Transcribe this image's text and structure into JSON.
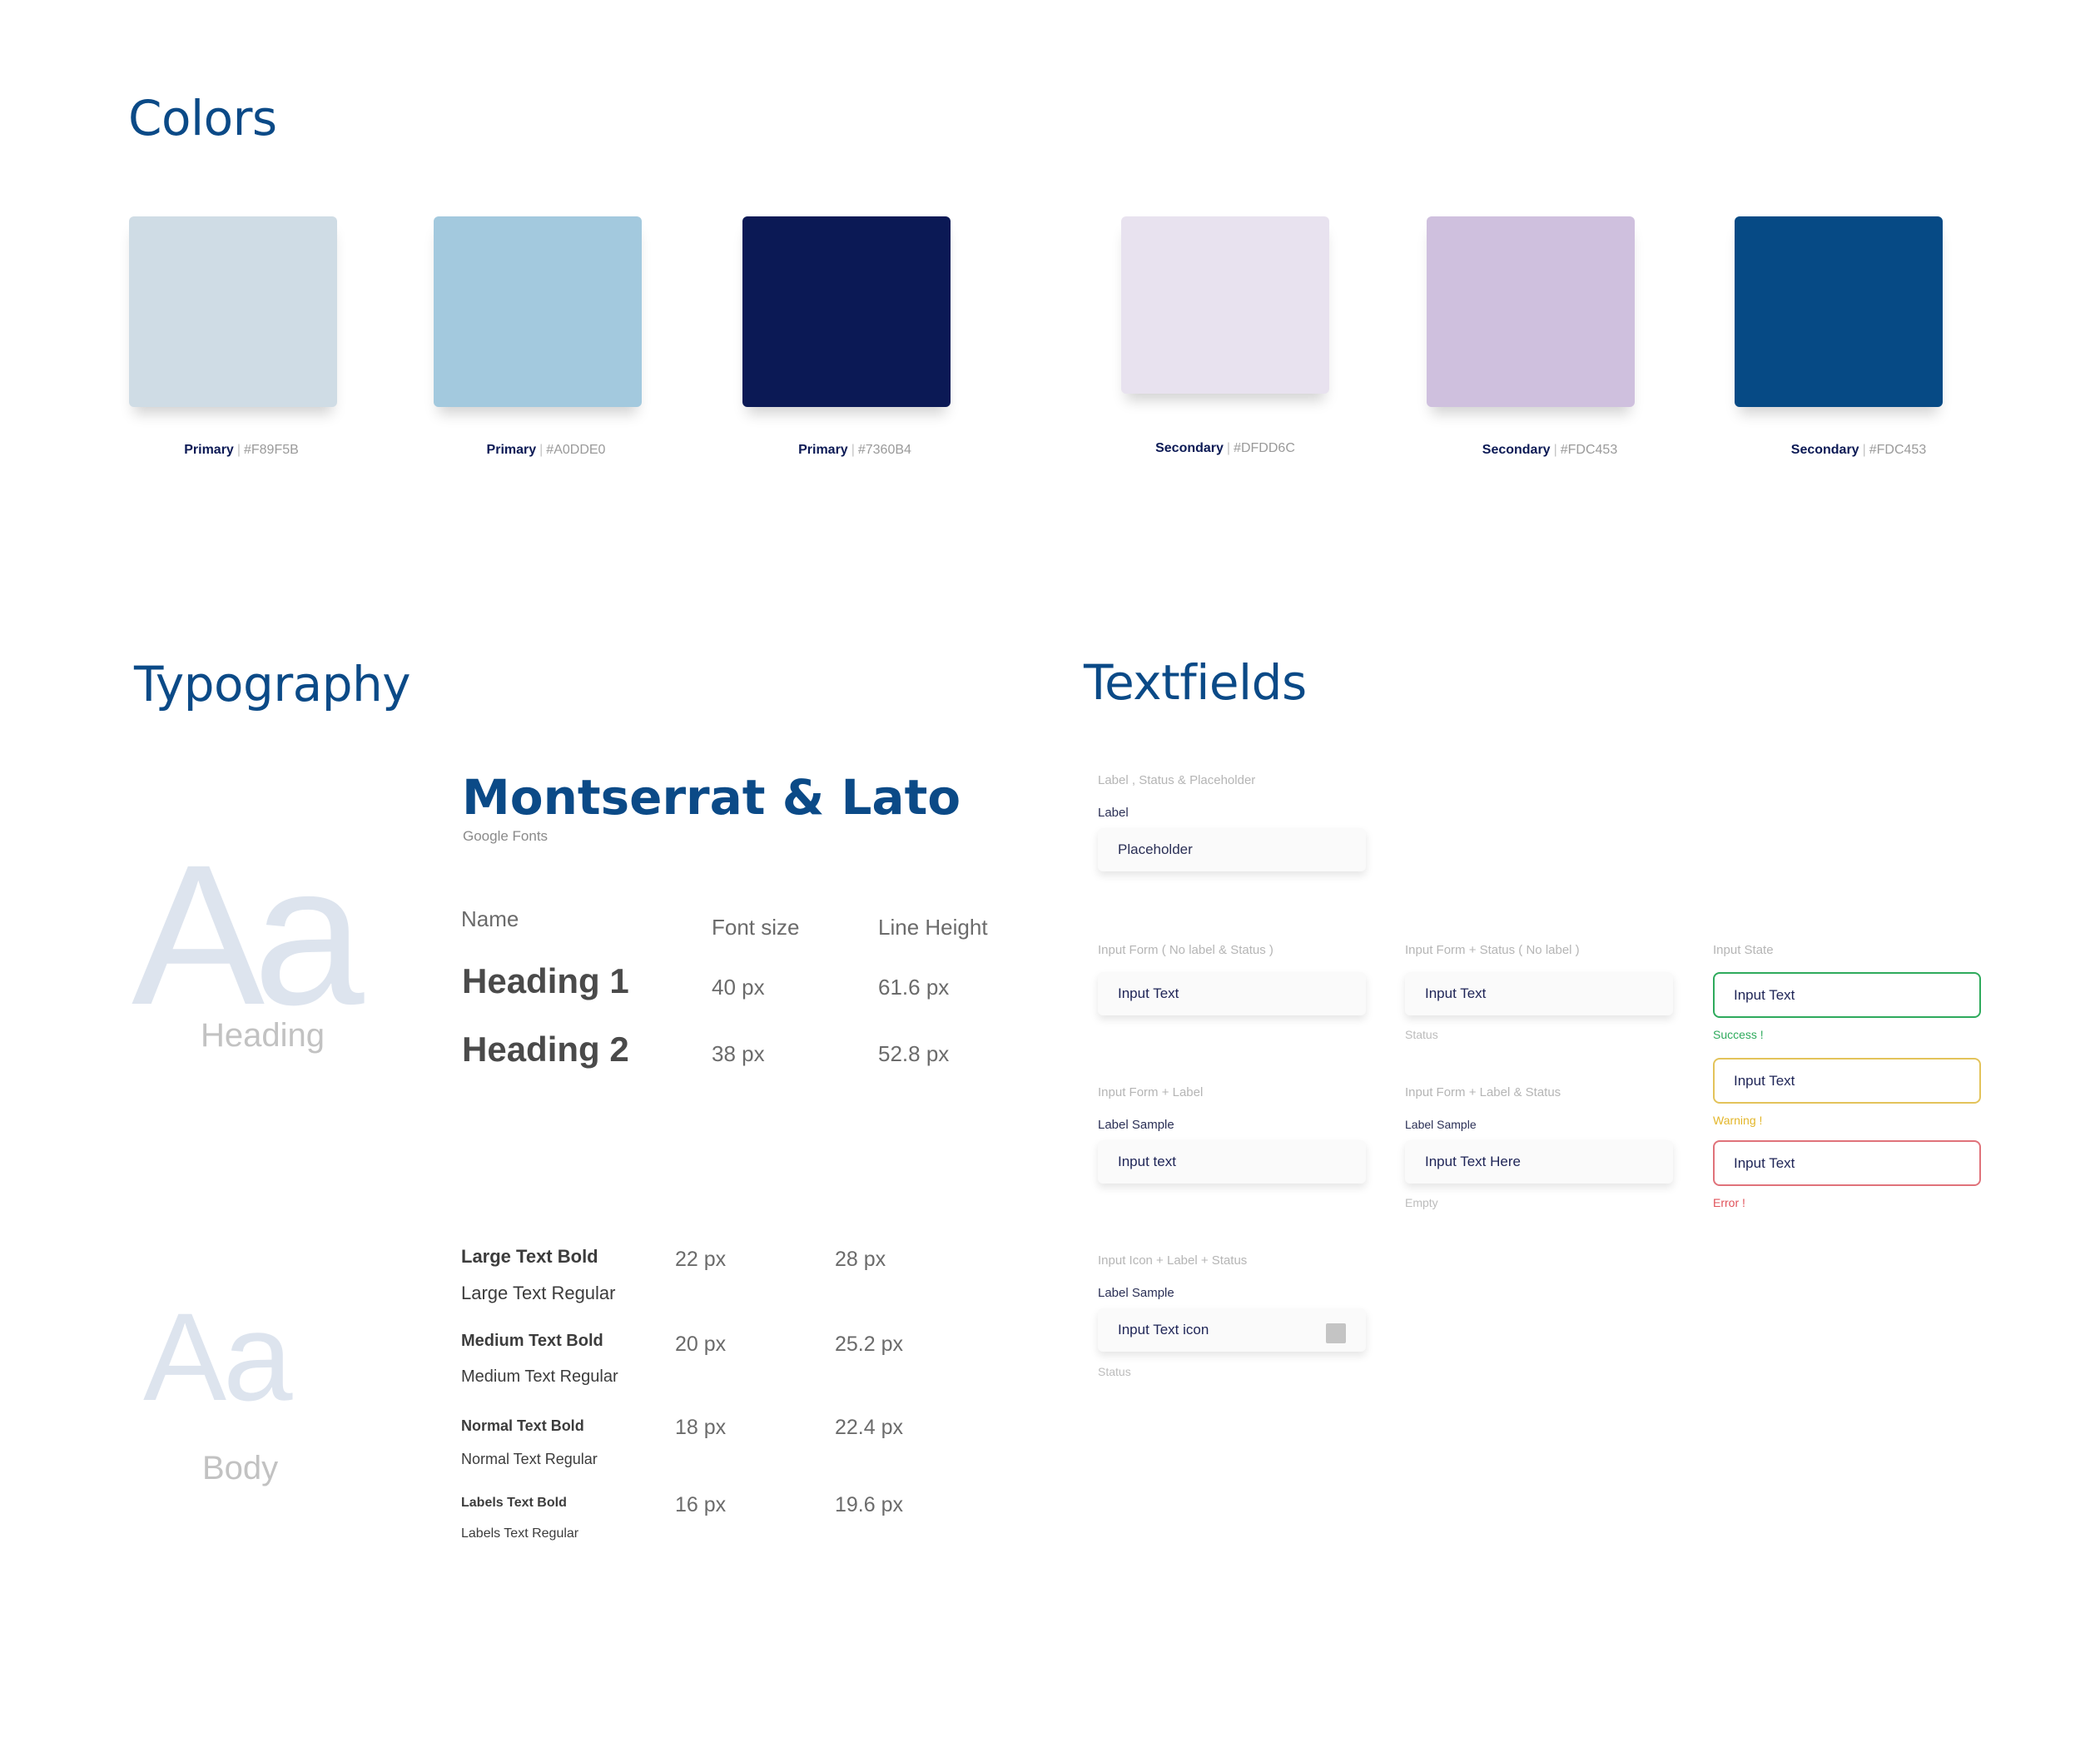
{
  "colors": {
    "title": "Colors",
    "swatches": [
      {
        "kind": "Primary",
        "code": "#F89F5B",
        "fill": "#CFDCE5"
      },
      {
        "kind": "Primary",
        "code": "#A0DDE0",
        "fill": "#A3C9DE"
      },
      {
        "kind": "Primary",
        "code": "#7360B4",
        "fill": "#0B1955"
      },
      {
        "kind": "Secondary",
        "code": "#DFDD6C",
        "fill": "#E8E2EF"
      },
      {
        "kind": "Secondary",
        "code": "#FDC453",
        "fill": "#CFC0DE"
      },
      {
        "kind": "Secondary",
        "code": "#FDC453",
        "fill": "#064A85"
      }
    ]
  },
  "typography": {
    "title": "Typography",
    "heading_sample": {
      "glyphs": "Aa",
      "caption": "Heading"
    },
    "body_sample": {
      "glyphs": "Aa",
      "caption": "Body"
    },
    "font_title": "Montserrat & Lato",
    "font_source": "Google Fonts",
    "columns": {
      "name": "Name",
      "size": "Font size",
      "line_height": "Line Height"
    },
    "headings": [
      {
        "name": "Heading 1",
        "size": "40 px",
        "line_height": "61.6 px"
      },
      {
        "name": "Heading 2",
        "size": "38 px",
        "line_height": "52.8 px"
      }
    ],
    "body": [
      {
        "bold": "Large Text Bold",
        "regular": "Large Text Regular",
        "size": "22 px",
        "line_height": "28 px"
      },
      {
        "bold": "Medium Text Bold",
        "regular": "Medium Text Regular",
        "size": "20 px",
        "line_height": "25.2 px"
      },
      {
        "bold": "Normal Text Bold",
        "regular": "Normal Text Regular",
        "size": "18 px",
        "line_height": "22.4 px"
      },
      {
        "bold": "Labels Text Bold",
        "regular": "Labels Text Regular",
        "size": "16 px",
        "line_height": "19.6 px"
      }
    ]
  },
  "textfields": {
    "title": "Textfields",
    "f1": {
      "caption": "Label , Status & Placeholder",
      "label": "Label",
      "placeholder": "Placeholder"
    },
    "f2": {
      "caption": "Input Form ( No label & Status )",
      "value": "Input Text"
    },
    "f3": {
      "caption": "Input Form + Status ( No label )",
      "value": "Input Text",
      "status": "Status"
    },
    "f4": {
      "caption": "Input Form + Label",
      "label": "Label Sample",
      "value": "Input text"
    },
    "f5": {
      "caption": "Input Form + Label & Status",
      "label": "Label Sample",
      "value": "Input Text Here",
      "status": "Empty"
    },
    "f6": {
      "caption": "Input Icon + Label + Status",
      "label": "Label Sample",
      "value": "Input Text icon",
      "status": "Status"
    },
    "states": {
      "caption": "Input State",
      "success": {
        "value": "Input Text",
        "status": "Success !",
        "color": "#2EAA5C"
      },
      "warning": {
        "value": "Input Text",
        "status": "Warning !",
        "color": "#E3B62A"
      },
      "error": {
        "value": "Input Text",
        "status": "Error !",
        "color": "#E0525A"
      }
    }
  }
}
